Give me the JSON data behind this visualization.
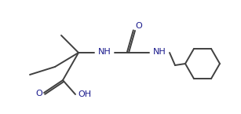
{
  "bg_color": "#ffffff",
  "line_color": "#404040",
  "text_color": "#1a1a8c",
  "line_width": 1.4,
  "font_size": 8.0,
  "fig_width": 3.07,
  "fig_height": 1.45,
  "dpi": 100,
  "xlim": [
    0,
    307
  ],
  "ylim": [
    0,
    145
  ]
}
